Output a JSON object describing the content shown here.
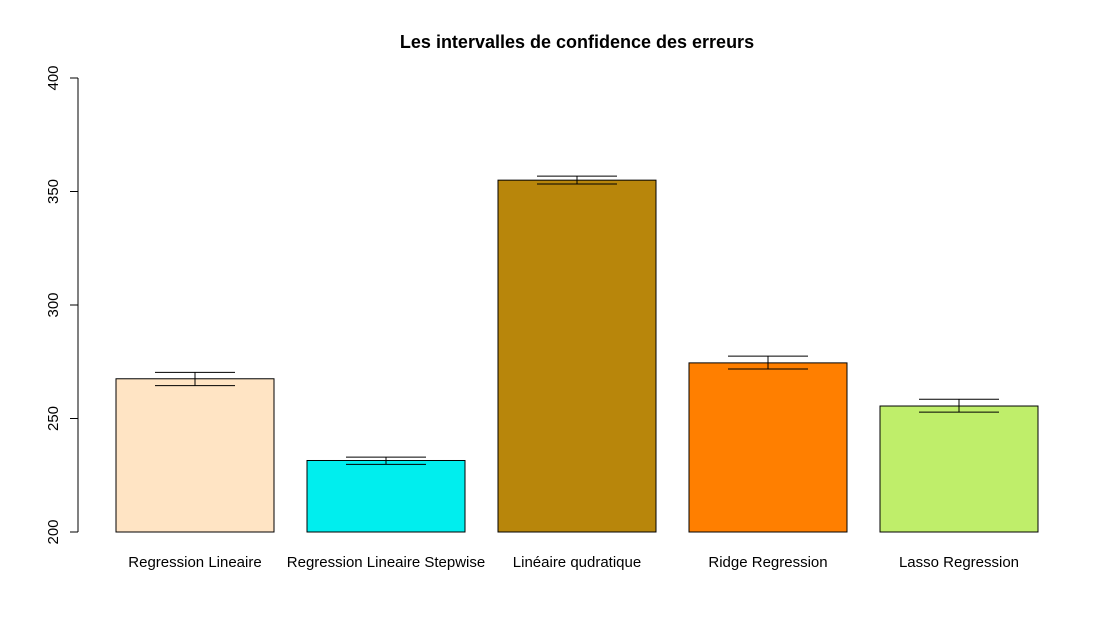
{
  "chart_data": {
    "type": "bar",
    "title": "Les intervalles de confidence des erreurs",
    "xlabel": "",
    "ylabel": "",
    "ylim": [
      200,
      400
    ],
    "yticks": [
      200,
      250,
      300,
      350,
      400
    ],
    "grid": false,
    "categories": [
      "Regression Lineaire",
      "Regression Lineaire Stepwise",
      "Linéaire qudratique",
      "Ridge Regression",
      "Lasso Regression"
    ],
    "values": [
      267.5,
      231.5,
      355.0,
      274.5,
      255.5
    ],
    "error_lower": [
      264.5,
      229.8,
      353.3,
      271.8,
      252.8
    ],
    "error_upper": [
      270.3,
      233.0,
      356.8,
      277.5,
      258.5
    ],
    "colors": [
      "#FFE4C4",
      "#00EEEE",
      "#B8860B",
      "#FF7F00",
      "#BFEE6A"
    ]
  }
}
